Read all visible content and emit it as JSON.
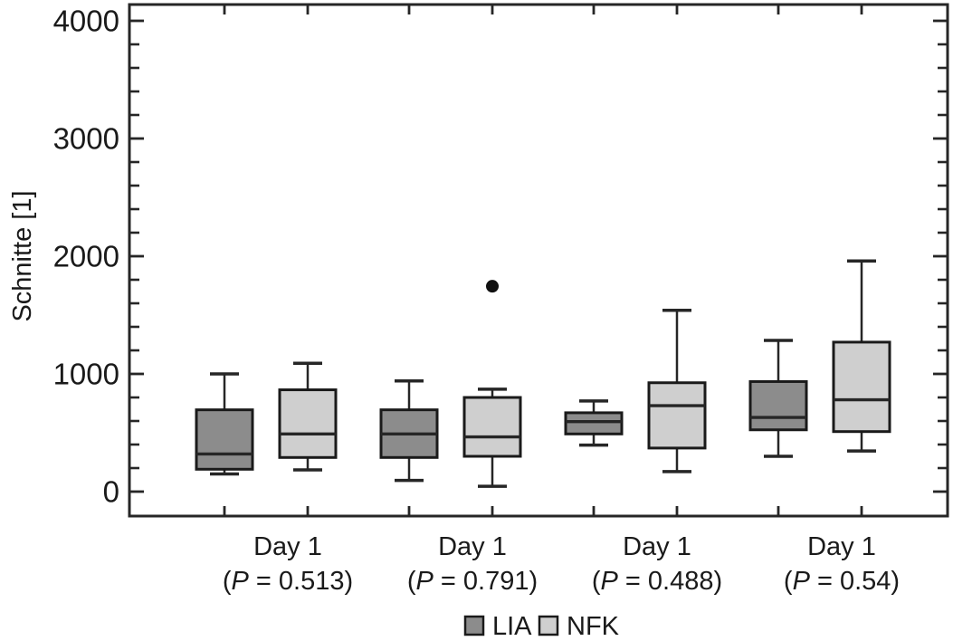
{
  "chart_data": {
    "type": "boxplot",
    "title": "",
    "ylabel": "Schnitte [1]",
    "xlabel": "",
    "ylim": [
      0,
      4000
    ],
    "yticks": [
      0,
      1000,
      2000,
      3000,
      4000
    ],
    "ytick_minor_step": 200,
    "grid": false,
    "legend_position": "bottom-center",
    "frame_color": "#262626",
    "text_color": "#1a1a1a",
    "outlier_color": "#111111",
    "series": [
      {
        "name": "LIA",
        "color": "#8c8c8c"
      },
      {
        "name": "NFK",
        "color": "#cfcfcf"
      }
    ],
    "groups": [
      {
        "label": "Day 1",
        "p_label": "(P = 0.513)",
        "p_value": "0.513",
        "boxes": [
          {
            "series": "LIA",
            "min": 150,
            "q1": 190,
            "median": 320,
            "q3": 695,
            "max": 1000,
            "outliers": []
          },
          {
            "series": "NFK",
            "min": 185,
            "q1": 290,
            "median": 490,
            "q3": 865,
            "max": 1090,
            "outliers": []
          }
        ]
      },
      {
        "label": "Day 1",
        "p_label": "(P = 0.791)",
        "p_value": "0.791",
        "boxes": [
          {
            "series": "LIA",
            "min": 95,
            "q1": 290,
            "median": 490,
            "q3": 695,
            "max": 940,
            "outliers": []
          },
          {
            "series": "NFK",
            "min": 45,
            "q1": 300,
            "median": 465,
            "q3": 800,
            "max": 870,
            "outliers": [
              1745
            ]
          }
        ]
      },
      {
        "label": "Day 1",
        "p_label": "(P = 0.488)",
        "p_value": "0.488",
        "boxes": [
          {
            "series": "LIA",
            "min": 395,
            "q1": 490,
            "median": 595,
            "q3": 670,
            "max": 770,
            "outliers": []
          },
          {
            "series": "NFK",
            "min": 170,
            "q1": 370,
            "median": 730,
            "q3": 925,
            "max": 1540,
            "outliers": []
          }
        ]
      },
      {
        "label": "Day 1",
        "p_label": "(P = 0.54)",
        "p_value": "0.54",
        "boxes": [
          {
            "series": "LIA",
            "min": 300,
            "q1": 525,
            "median": 630,
            "q3": 935,
            "max": 1285,
            "outliers": []
          },
          {
            "series": "NFK",
            "min": 345,
            "q1": 510,
            "median": 780,
            "q3": 1270,
            "max": 1960,
            "outliers": []
          }
        ]
      }
    ]
  }
}
